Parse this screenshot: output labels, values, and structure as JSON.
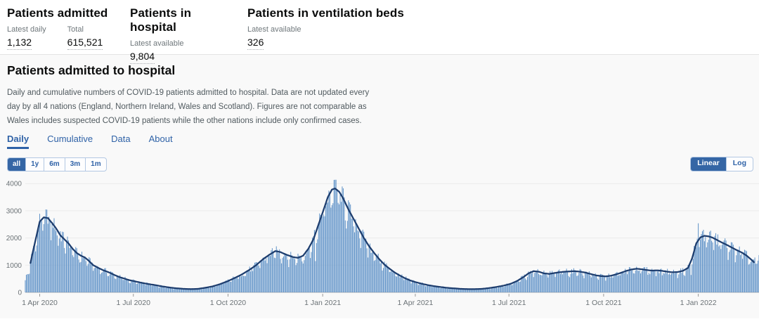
{
  "colors": {
    "accent": "#2f62a7",
    "accent_strong": "#3566a5",
    "panel_bg": "#f9f9f9",
    "bar": "#5f92c8",
    "line": "#1d3d6e",
    "grid": "#ebebeb",
    "axis": "#b5b5b5",
    "axis_text": "#6b7276"
  },
  "summary": {
    "cards": [
      {
        "title": "Patients admitted",
        "metrics": [
          {
            "label": "Latest daily",
            "value": "1,132"
          },
          {
            "label": "Total",
            "value": "615,521"
          }
        ]
      },
      {
        "title": "Patients in hospital",
        "metrics": [
          {
            "label": "Latest available",
            "value": "9,804"
          }
        ]
      },
      {
        "title": "Patients in ventilation beds",
        "metrics": [
          {
            "label": "Latest available",
            "value": "326"
          }
        ]
      }
    ]
  },
  "section": {
    "title": "Patients admitted to hospital",
    "description": "Daily and cumulative numbers of COVID-19 patients admitted to hospital. Data are not updated every day by all 4 nations (England, Northern Ireland, Wales and Scotland). Figures are not comparable as Wales includes suspected COVID-19 patients while the other nations include only confirmed cases.",
    "tabs": [
      {
        "label": "Daily",
        "active": true
      },
      {
        "label": "Cumulative",
        "active": false
      },
      {
        "label": "Data",
        "active": false
      },
      {
        "label": "About",
        "active": false
      }
    ],
    "range_buttons": [
      {
        "label": "all",
        "active": true
      },
      {
        "label": "1y",
        "active": false
      },
      {
        "label": "6m",
        "active": false
      },
      {
        "label": "3m",
        "active": false
      },
      {
        "label": "1m",
        "active": false
      }
    ],
    "scale_buttons": [
      {
        "label": "Linear",
        "active": true
      },
      {
        "label": "Log",
        "active": false
      }
    ]
  },
  "chart_data": {
    "type": "bar+line",
    "title": "Daily patients admitted to hospital (bars: daily, line: 7-day average)",
    "ylim": [
      0,
      4000
    ],
    "yticks": [
      0,
      1000,
      2000,
      3000,
      4000
    ],
    "grid": true,
    "x_domain": [
      "2020-03-18",
      "2022-03-01"
    ],
    "xticks": [
      {
        "date": "2020-04-01",
        "label": "1 Apr 2020"
      },
      {
        "date": "2020-07-01",
        "label": "1 Jul 2020"
      },
      {
        "date": "2020-10-01",
        "label": "1 Oct 2020"
      },
      {
        "date": "2021-01-01",
        "label": "1 Jan 2021"
      },
      {
        "date": "2021-04-01",
        "label": "1 Apr 2021"
      },
      {
        "date": "2021-07-01",
        "label": "1 Jul 2021"
      },
      {
        "date": "2021-10-01",
        "label": "1 Oct 2021"
      },
      {
        "date": "2022-01-01",
        "label": "1 Jan 2022"
      }
    ],
    "line_start_date": "2020-03-23",
    "line_end_date": "2022-02-24",
    "keypoints": [
      [
        "2020-03-18",
        480
      ],
      [
        "2020-03-21",
        750
      ],
      [
        "2020-03-23",
        1080
      ],
      [
        "2020-03-26",
        1600
      ],
      [
        "2020-03-29",
        2100
      ],
      [
        "2020-04-01",
        2600
      ],
      [
        "2020-04-05",
        2760
      ],
      [
        "2020-04-09",
        2730
      ],
      [
        "2020-04-13",
        2550
      ],
      [
        "2020-04-17",
        2350
      ],
      [
        "2020-04-21",
        2100
      ],
      [
        "2020-04-25",
        1950
      ],
      [
        "2020-04-29",
        1800
      ],
      [
        "2020-05-03",
        1600
      ],
      [
        "2020-05-07",
        1450
      ],
      [
        "2020-05-11",
        1350
      ],
      [
        "2020-05-15",
        1280
      ],
      [
        "2020-05-19",
        1150
      ],
      [
        "2020-05-23",
        1000
      ],
      [
        "2020-05-28",
        900
      ],
      [
        "2020-06-02",
        810
      ],
      [
        "2020-06-07",
        740
      ],
      [
        "2020-06-12",
        650
      ],
      [
        "2020-06-17",
        570
      ],
      [
        "2020-06-22",
        510
      ],
      [
        "2020-06-27",
        450
      ],
      [
        "2020-07-02",
        410
      ],
      [
        "2020-07-08",
        360
      ],
      [
        "2020-07-15",
        310
      ],
      [
        "2020-07-22",
        270
      ],
      [
        "2020-07-29",
        220
      ],
      [
        "2020-08-05",
        180
      ],
      [
        "2020-08-12",
        150
      ],
      [
        "2020-08-19",
        130
      ],
      [
        "2020-08-26",
        120
      ],
      [
        "2020-09-02",
        130
      ],
      [
        "2020-09-09",
        170
      ],
      [
        "2020-09-16",
        220
      ],
      [
        "2020-09-23",
        300
      ],
      [
        "2020-09-30",
        400
      ],
      [
        "2020-10-07",
        520
      ],
      [
        "2020-10-14",
        650
      ],
      [
        "2020-10-21",
        810
      ],
      [
        "2020-10-28",
        990
      ],
      [
        "2020-11-04",
        1220
      ],
      [
        "2020-11-10",
        1380
      ],
      [
        "2020-11-16",
        1520
      ],
      [
        "2020-11-21",
        1480
      ],
      [
        "2020-11-27",
        1380
      ],
      [
        "2020-12-03",
        1300
      ],
      [
        "2020-12-08",
        1270
      ],
      [
        "2020-12-13",
        1350
      ],
      [
        "2020-12-18",
        1600
      ],
      [
        "2020-12-23",
        1950
      ],
      [
        "2020-12-28",
        2500
      ],
      [
        "2021-01-02",
        3050
      ],
      [
        "2021-01-06",
        3500
      ],
      [
        "2021-01-10",
        3780
      ],
      [
        "2021-01-13",
        3820
      ],
      [
        "2021-01-17",
        3700
      ],
      [
        "2021-01-21",
        3450
      ],
      [
        "2021-01-26",
        3050
      ],
      [
        "2021-01-31",
        2700
      ],
      [
        "2021-02-05",
        2350
      ],
      [
        "2021-02-10",
        2000
      ],
      [
        "2021-02-15",
        1700
      ],
      [
        "2021-02-20",
        1450
      ],
      [
        "2021-02-25",
        1220
      ],
      [
        "2021-03-02",
        1020
      ],
      [
        "2021-03-07",
        870
      ],
      [
        "2021-03-12",
        730
      ],
      [
        "2021-03-17",
        620
      ],
      [
        "2021-03-22",
        520
      ],
      [
        "2021-03-27",
        440
      ],
      [
        "2021-04-01",
        380
      ],
      [
        "2021-04-07",
        320
      ],
      [
        "2021-04-13",
        270
      ],
      [
        "2021-04-19",
        230
      ],
      [
        "2021-04-25",
        200
      ],
      [
        "2021-05-01",
        170
      ],
      [
        "2021-05-08",
        150
      ],
      [
        "2021-05-15",
        130
      ],
      [
        "2021-05-22",
        120
      ],
      [
        "2021-05-29",
        120
      ],
      [
        "2021-06-05",
        130
      ],
      [
        "2021-06-12",
        160
      ],
      [
        "2021-06-19",
        200
      ],
      [
        "2021-06-26",
        250
      ],
      [
        "2021-07-03",
        320
      ],
      [
        "2021-07-09",
        420
      ],
      [
        "2021-07-15",
        560
      ],
      [
        "2021-07-20",
        700
      ],
      [
        "2021-07-25",
        780
      ],
      [
        "2021-07-30",
        760
      ],
      [
        "2021-08-04",
        700
      ],
      [
        "2021-08-09",
        680
      ],
      [
        "2021-08-14",
        710
      ],
      [
        "2021-08-19",
        740
      ],
      [
        "2021-08-24",
        760
      ],
      [
        "2021-08-29",
        770
      ],
      [
        "2021-09-03",
        780
      ],
      [
        "2021-09-08",
        760
      ],
      [
        "2021-09-13",
        730
      ],
      [
        "2021-09-18",
        680
      ],
      [
        "2021-09-23",
        630
      ],
      [
        "2021-09-28",
        600
      ],
      [
        "2021-10-03",
        590
      ],
      [
        "2021-10-08",
        610
      ],
      [
        "2021-10-13",
        660
      ],
      [
        "2021-10-18",
        720
      ],
      [
        "2021-10-23",
        790
      ],
      [
        "2021-10-28",
        840
      ],
      [
        "2021-11-02",
        870
      ],
      [
        "2021-11-07",
        850
      ],
      [
        "2021-11-12",
        820
      ],
      [
        "2021-11-17",
        800
      ],
      [
        "2021-11-22",
        810
      ],
      [
        "2021-11-27",
        790
      ],
      [
        "2021-12-02",
        760
      ],
      [
        "2021-12-07",
        740
      ],
      [
        "2021-12-12",
        750
      ],
      [
        "2021-12-17",
        790
      ],
      [
        "2021-12-22",
        900
      ],
      [
        "2021-12-26",
        1250
      ],
      [
        "2021-12-30",
        1800
      ],
      [
        "2022-01-03",
        2020
      ],
      [
        "2022-01-07",
        2080
      ],
      [
        "2022-01-11",
        2060
      ],
      [
        "2022-01-15",
        2010
      ],
      [
        "2022-01-19",
        1930
      ],
      [
        "2022-01-23",
        1850
      ],
      [
        "2022-01-28",
        1760
      ],
      [
        "2022-02-02",
        1660
      ],
      [
        "2022-02-07",
        1560
      ],
      [
        "2022-02-12",
        1470
      ],
      [
        "2022-02-17",
        1350
      ],
      [
        "2022-02-21",
        1220
      ],
      [
        "2022-02-24",
        1110
      ],
      [
        "2022-02-26",
        1180
      ],
      [
        "2022-03-01",
        1220
      ]
    ],
    "bar_overrides": {
      "2021-01-12": 4134,
      "2022-01-01": 2540,
      "2021-12-25": 640,
      "2020-12-25": 1150
    }
  }
}
